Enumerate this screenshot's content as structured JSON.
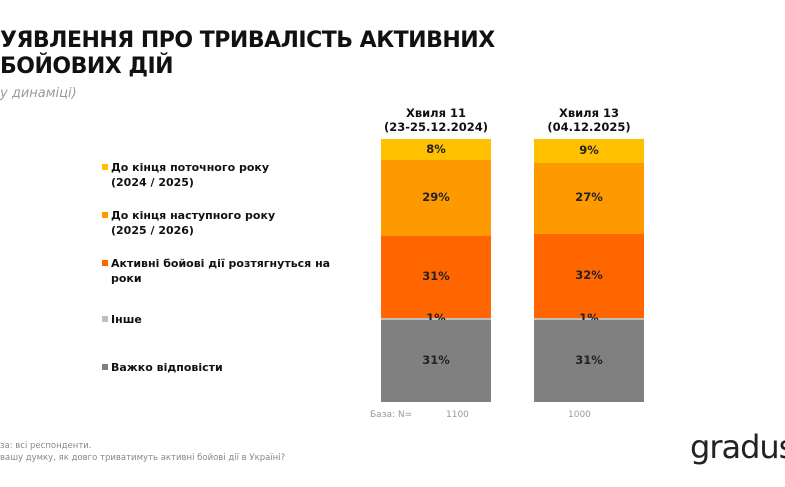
{
  "title_line1": "УЯВЛЕННЯ ПРО ТРИВАЛІСТЬ АКТИВНИХ",
  "title_line2": "БОЙОВИХ ДІЙ",
  "subtitle": "у динаміці)",
  "chart_data": {
    "type": "bar",
    "stacked": true,
    "orientation": "vertical",
    "categories": [
      "Хвиля 11",
      "Хвиля 13"
    ],
    "category_dates": [
      "(23-25.12.2024)",
      "(04.12.2025)"
    ],
    "series": [
      {
        "name": "До кінця поточного року (2024 / 2025)",
        "name_line1": "До кінця поточного року",
        "name_line2": "(2024 / 2025)",
        "color": "#FFC000",
        "values": [
          8,
          9
        ]
      },
      {
        "name": "До кінця наступного року (2025 / 2026)",
        "name_line1": "До кінця наступного року",
        "name_line2": "(2025 / 2026)",
        "color": "#FF9900",
        "values": [
          29,
          27
        ]
      },
      {
        "name": "Активні бойові дії розтягнуться на роки",
        "name_line1": "Активні бойові дії розтягнуться на",
        "name_line2": "роки",
        "color": "#FF6600",
        "values": [
          31,
          32
        ]
      },
      {
        "name": "Інше",
        "name_line1": "Інше",
        "name_line2": "",
        "color": "#BFBFBF",
        "values": [
          1,
          1
        ]
      },
      {
        "name": "Важко відповісти",
        "name_line1": "Важко відповісти",
        "name_line2": "",
        "color": "#808080",
        "values": [
          31,
          31
        ]
      }
    ],
    "value_suffix": "%",
    "ylim": [
      0,
      100
    ],
    "legend_position": "left",
    "base_label": "База: N=",
    "base_values": [
      "1100",
      "1000"
    ]
  },
  "footer": {
    "line1": "за: всі респонденти.",
    "line2": "вашу думку, як довго триватимуть активні бойові дії в Україні?"
  },
  "logo": "gradus"
}
